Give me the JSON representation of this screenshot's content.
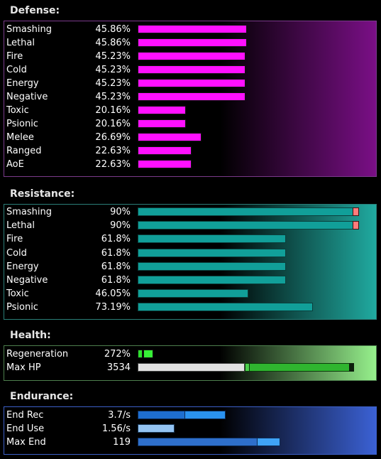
{
  "defense": {
    "title": "Defense:",
    "rows": [
      {
        "label": "Smashing",
        "value": "45.86%",
        "pct": 45.86
      },
      {
        "label": "Lethal",
        "value": "45.86%",
        "pct": 45.86
      },
      {
        "label": "Fire",
        "value": "45.23%",
        "pct": 45.23
      },
      {
        "label": "Cold",
        "value": "45.23%",
        "pct": 45.23
      },
      {
        "label": "Energy",
        "value": "45.23%",
        "pct": 45.23
      },
      {
        "label": "Negative",
        "value": "45.23%",
        "pct": 45.23
      },
      {
        "label": "Toxic",
        "value": "20.16%",
        "pct": 20.16
      },
      {
        "label": "Psionic",
        "value": "20.16%",
        "pct": 20.16
      },
      {
        "label": "Melee",
        "value": "26.69%",
        "pct": 26.69
      },
      {
        "label": "Ranged",
        "value": "22.63%",
        "pct": 22.63
      },
      {
        "label": "AoE",
        "value": "22.63%",
        "pct": 22.63
      }
    ]
  },
  "resistance": {
    "title": "Resistance:",
    "rows": [
      {
        "label": "Smashing",
        "value": "90%",
        "pct": 90,
        "capped": true
      },
      {
        "label": "Lethal",
        "value": "90%",
        "pct": 90,
        "capped": true
      },
      {
        "label": "Fire",
        "value": "61.8%",
        "pct": 61.8,
        "capped": false
      },
      {
        "label": "Cold",
        "value": "61.8%",
        "pct": 61.8,
        "capped": false
      },
      {
        "label": "Energy",
        "value": "61.8%",
        "pct": 61.8,
        "capped": false
      },
      {
        "label": "Negative",
        "value": "61.8%",
        "pct": 61.8,
        "capped": false
      },
      {
        "label": "Toxic",
        "value": "46.05%",
        "pct": 46.05,
        "capped": false
      },
      {
        "label": "Psionic",
        "value": "73.19%",
        "pct": 73.19,
        "capped": false
      }
    ]
  },
  "health": {
    "title": "Health:",
    "regeneration": {
      "label": "Regeneration",
      "value": "272%"
    },
    "max_hp": {
      "label": "Max HP",
      "value": "3534"
    }
  },
  "endurance": {
    "title": "Endurance:",
    "end_rec": {
      "label": "End Rec",
      "value": "3.7/s"
    },
    "end_use": {
      "label": "End Use",
      "value": "1.56/s"
    },
    "max_end": {
      "label": "Max End",
      "value": "119"
    }
  },
  "colors": {
    "defense_bar": "#ff10ff",
    "resistance_bar": "#119f99",
    "resistance_cap": "#ff7b7b",
    "health_bar": "#2fb52f",
    "endurance_bar": "#2a92f0"
  }
}
